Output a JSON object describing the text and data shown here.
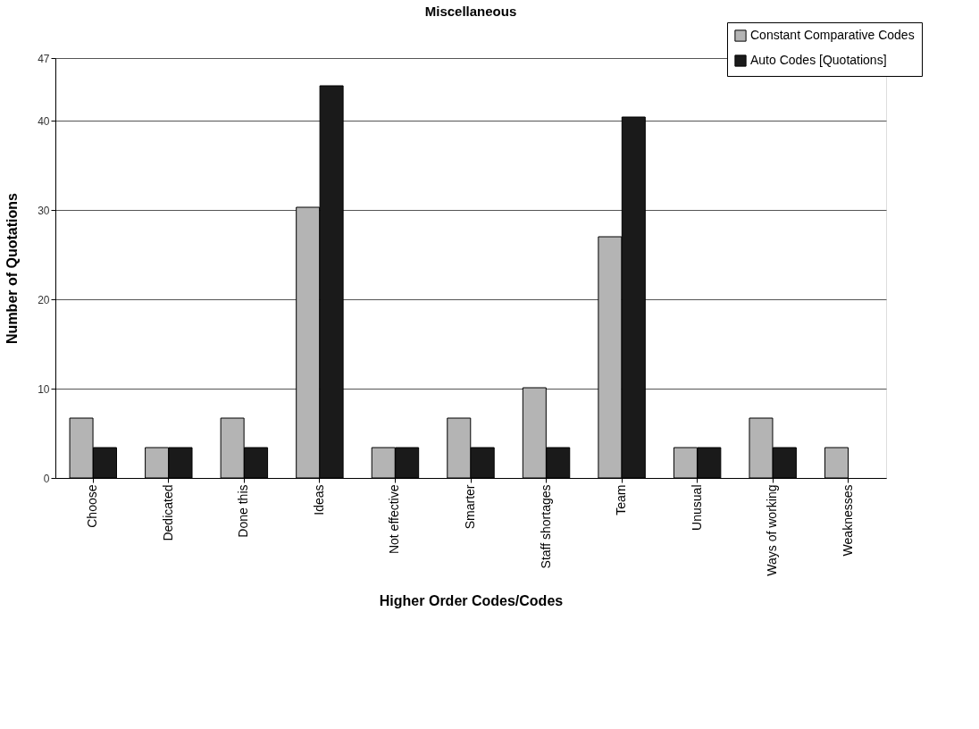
{
  "chart_data": {
    "type": "bar",
    "title": "Miscellaneous",
    "xlabel": "Higher Order Codes/Codes",
    "ylabel": "Number of Quotations",
    "categories": [
      "Choose",
      "Dedicated",
      "Done this",
      "Ideas",
      "Not effective",
      "Smarter",
      "Staff shortages",
      "Team",
      "Unusual",
      "Ways of working",
      "Weaknesses"
    ],
    "series": [
      {
        "name": "Constant Comparative Codes",
        "color": "#b4b4b4",
        "values": [
          6.7,
          3.4,
          6.7,
          30.3,
          3.4,
          6.7,
          10.1,
          27,
          3.4,
          6.7,
          3.4
        ]
      },
      {
        "name": "Auto Codes [Quotations]",
        "color": "#1a1a1a",
        "values": [
          3.4,
          3.4,
          3.4,
          43.9,
          3.4,
          3.4,
          3.4,
          40.4,
          3.4,
          3.4,
          null
        ]
      }
    ],
    "ylim": [
      0,
      47
    ],
    "yticks": [
      0,
      10,
      20,
      30,
      40,
      47
    ],
    "grid": "y",
    "legend": "top right"
  }
}
